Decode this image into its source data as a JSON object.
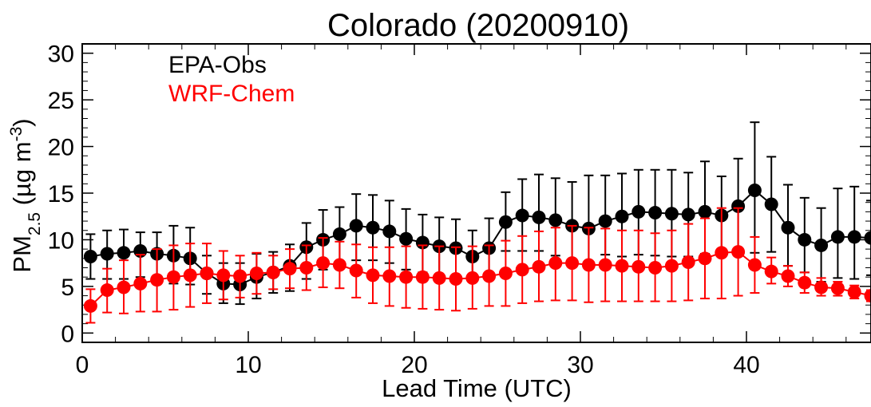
{
  "chart_data": {
    "type": "scatter",
    "title": "Colorado (20200910)",
    "xlabel": "Lead Time (UTC)",
    "ylabel": {
      "pm": "PM",
      "pm_sub": "2.5",
      "units_open": " (µg m",
      "units_sup": "-3",
      "units_close": ")"
    },
    "xlim": [
      0,
      47.5
    ],
    "ylim": [
      -1,
      31
    ],
    "x_ticks": [
      0,
      10,
      20,
      30,
      40
    ],
    "y_ticks": [
      0,
      5,
      10,
      15,
      20,
      25,
      30
    ],
    "x_tick_labels": [
      "0",
      "10",
      "20",
      "30",
      "40"
    ],
    "y_tick_labels": [
      "0",
      "5",
      "10",
      "15",
      "20",
      "25",
      "30"
    ],
    "grid": false,
    "legend_position": "top-left",
    "x": [
      0.5,
      1.5,
      2.5,
      3.5,
      4.5,
      5.5,
      6.5,
      7.5,
      8.5,
      9.5,
      10.5,
      11.5,
      12.5,
      13.5,
      14.5,
      15.5,
      16.5,
      17.5,
      18.5,
      19.5,
      20.5,
      21.5,
      22.5,
      23.5,
      24.5,
      25.5,
      26.5,
      27.5,
      28.5,
      29.5,
      30.5,
      31.5,
      32.5,
      33.5,
      34.5,
      35.5,
      36.5,
      37.5,
      38.5,
      39.5,
      40.5,
      41.5,
      42.5,
      43.5,
      44.5,
      45.5,
      46.5,
      47.5
    ],
    "series": [
      {
        "name": "EPA-Obs",
        "color": "#000000",
        "values": [
          8.2,
          8.5,
          8.6,
          8.8,
          8.5,
          8.3,
          8.0,
          6.4,
          5.3,
          5.2,
          6.0,
          6.5,
          7.2,
          9.2,
          10.0,
          10.6,
          11.5,
          11.3,
          10.9,
          10.1,
          9.7,
          9.3,
          9.1,
          8.2,
          9.1,
          11.9,
          12.6,
          12.4,
          12.1,
          11.5,
          11.2,
          12.0,
          12.5,
          13.0,
          12.9,
          12.8,
          12.7,
          13.0,
          12.6,
          13.6,
          15.3,
          13.8,
          11.3,
          10.0,
          9.4,
          10.3,
          10.3,
          10.2
        ],
        "error_lower": [
          5.8,
          5.8,
          5.8,
          6.0,
          5.5,
          5.3,
          5.2,
          4.2,
          3.2,
          3.1,
          3.7,
          4.3,
          4.5,
          5.8,
          6.8,
          7.0,
          7.8,
          7.8,
          7.5,
          6.8,
          6.5,
          6.2,
          6.0,
          5.5,
          6.0,
          8.8,
          8.8,
          8.8,
          8.3,
          7.8,
          7.6,
          8.4,
          8.2,
          8.4,
          8.3,
          8.2,
          8.2,
          8.5,
          8.3,
          8.8,
          8.6,
          8.7,
          7.2,
          6.5,
          5.5,
          5.9,
          5.8,
          6.2
        ],
        "error_upper": [
          10.6,
          11.0,
          11.1,
          10.8,
          10.8,
          11.5,
          11.3,
          8.3,
          7.5,
          7.5,
          8.5,
          8.7,
          9.5,
          11.8,
          13.2,
          13.5,
          14.9,
          14.8,
          14.2,
          13.3,
          12.7,
          12.4,
          12.2,
          11.0,
          12.3,
          15.1,
          16.5,
          17.0,
          16.6,
          16.2,
          16.9,
          16.9,
          17.1,
          17.5,
          17.5,
          17.5,
          17.2,
          18.4,
          16.8,
          18.7,
          22.6,
          18.9,
          15.9,
          14.5,
          13.4,
          15.5,
          15.7,
          14.2
        ]
      },
      {
        "name": "WRF-Chem",
        "color": "#ff0000",
        "values": [
          2.9,
          4.6,
          4.9,
          5.3,
          5.7,
          6.0,
          6.2,
          6.4,
          6.2,
          6.1,
          6.4,
          6.5,
          6.9,
          7.0,
          7.5,
          7.3,
          6.7,
          6.2,
          6.1,
          6.0,
          6.0,
          5.9,
          5.8,
          5.9,
          6.1,
          6.4,
          6.8,
          7.1,
          7.5,
          7.5,
          7.3,
          7.3,
          7.2,
          7.1,
          7.0,
          7.2,
          7.6,
          8.0,
          8.6,
          8.7,
          7.3,
          6.6,
          6.1,
          5.4,
          4.9,
          4.8,
          4.4,
          4.0
        ],
        "error_lower": [
          1.1,
          2.2,
          2.1,
          2.3,
          2.3,
          2.5,
          2.8,
          3.2,
          3.6,
          3.8,
          4.2,
          4.7,
          4.8,
          4.6,
          4.9,
          4.8,
          3.8,
          3.2,
          2.9,
          2.7,
          2.6,
          2.5,
          2.4,
          2.6,
          2.9,
          2.9,
          3.2,
          3.4,
          3.5,
          3.5,
          3.3,
          3.4,
          3.4,
          3.4,
          3.4,
          3.4,
          3.5,
          3.7,
          3.7,
          4.0,
          4.3,
          5.3,
          5.0,
          4.3,
          4.0,
          4.0,
          3.7,
          3.4
        ],
        "error_upper": [
          4.7,
          6.9,
          7.8,
          8.4,
          9.0,
          9.4,
          9.6,
          9.6,
          8.8,
          8.3,
          8.6,
          8.3,
          9.0,
          9.4,
          10.2,
          9.8,
          9.5,
          9.2,
          9.2,
          9.3,
          9.4,
          9.3,
          9.2,
          9.3,
          9.4,
          9.9,
          10.4,
          10.9,
          11.3,
          11.5,
          11.3,
          11.2,
          11.0,
          11.0,
          10.7,
          11.0,
          11.7,
          12.3,
          13.4,
          13.4,
          10.3,
          8.1,
          7.2,
          6.5,
          5.9,
          5.5,
          5.1,
          4.6
        ]
      }
    ]
  }
}
